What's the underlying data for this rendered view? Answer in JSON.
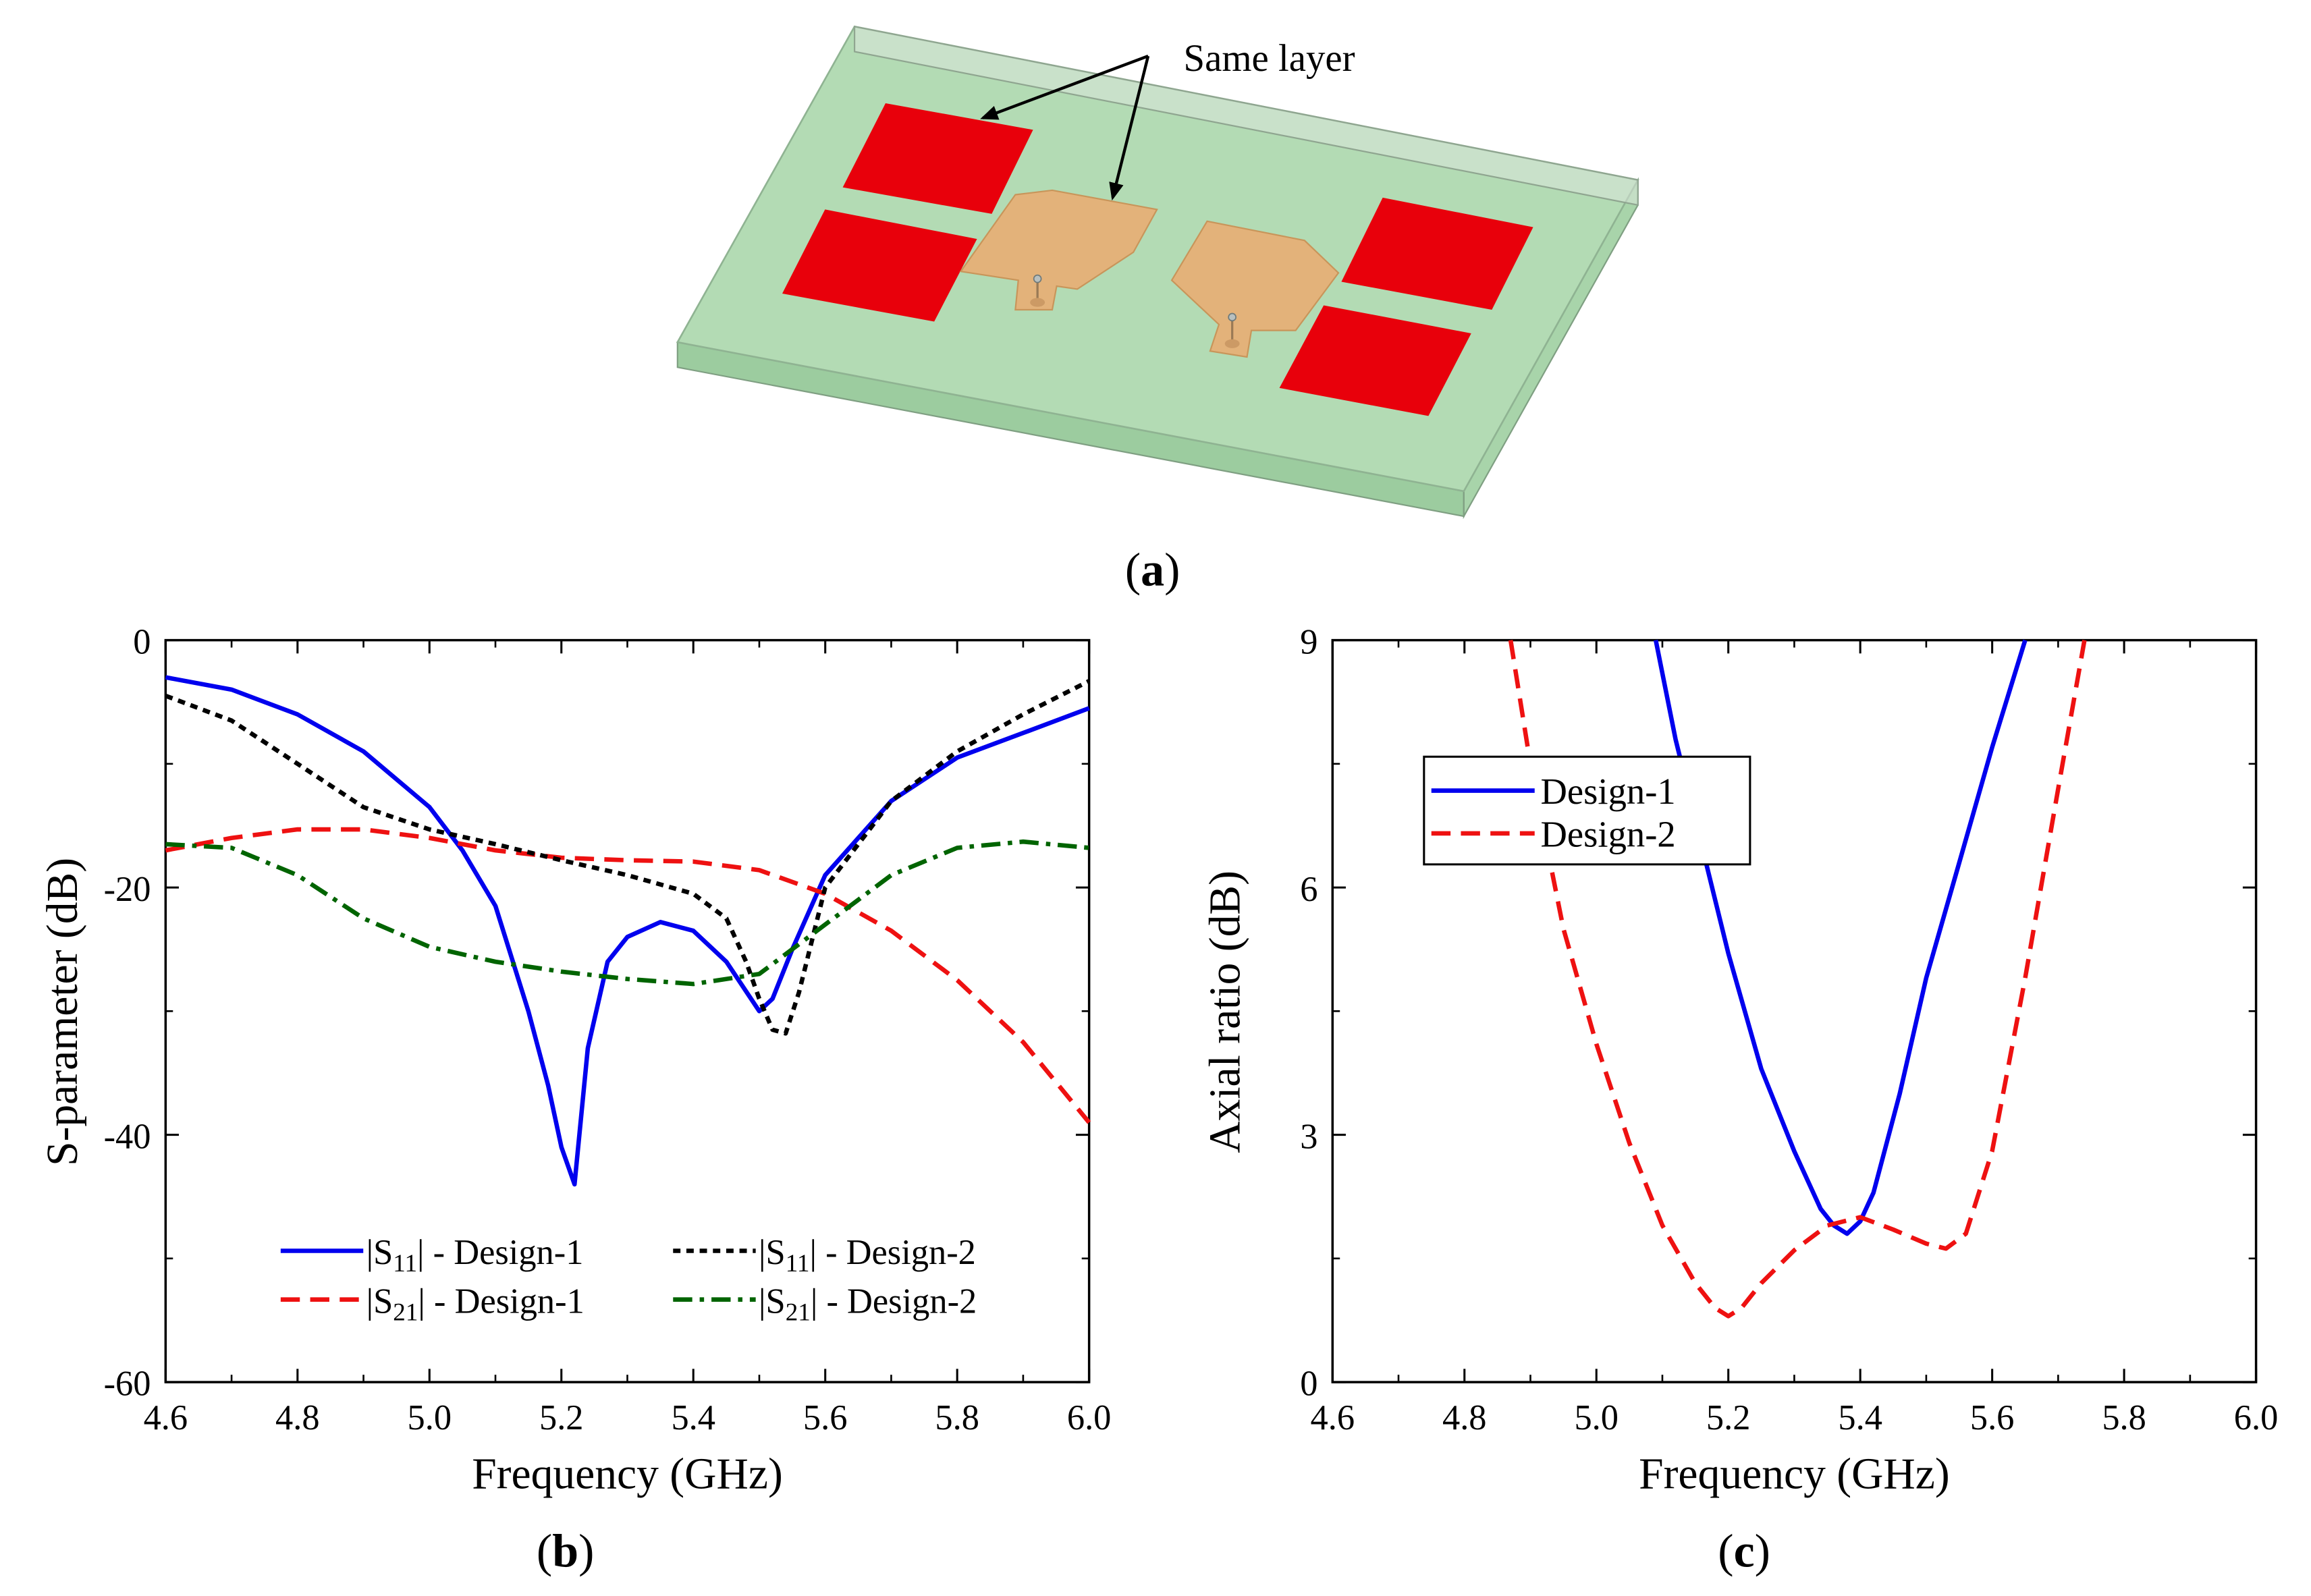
{
  "figure": {
    "panel_a": {
      "label_open": "(",
      "label_letter": "a",
      "label_close": ")",
      "annotation": "Same layer",
      "colors": {
        "substrate": "#b3dbb4",
        "parasitic": "#e8000b",
        "patch": "#e3b27a"
      }
    },
    "panel_b": {
      "label_open": "(",
      "label_letter": "b",
      "label_close": ")"
    },
    "panel_c": {
      "label_open": "(",
      "label_letter": "c",
      "label_close": ")"
    }
  },
  "chart_data": [
    {
      "id": "b",
      "type": "line",
      "title": "",
      "xlabel": "Frequency (GHz)",
      "ylabel": "S-parameter (dB)",
      "xlim": [
        4.6,
        6.0
      ],
      "ylim": [
        -60,
        0
      ],
      "xticks": [
        "4.6",
        "4.8",
        "5.0",
        "5.2",
        "5.4",
        "5.6",
        "5.8",
        "6.0"
      ],
      "yticks": [
        "0",
        "-20",
        "-40",
        "-60"
      ],
      "legend": "bottom",
      "series": [
        {
          "name": "|S11| - Design-1",
          "legend_prefix": "|S",
          "legend_sub": "11",
          "legend_suffix": "| - Design-1",
          "color": "#0000ee",
          "dash": "solid",
          "x": [
            4.6,
            4.7,
            4.8,
            4.9,
            5.0,
            5.05,
            5.1,
            5.15,
            5.18,
            5.2,
            5.22,
            5.24,
            5.27,
            5.3,
            5.35,
            5.4,
            5.45,
            5.5,
            5.52,
            5.55,
            5.6,
            5.7,
            5.8,
            5.9,
            6.0
          ],
          "y": [
            -3,
            -4,
            -6,
            -9,
            -13.5,
            -17,
            -21.5,
            -30,
            -36,
            -41,
            -44,
            -33,
            -26,
            -24,
            -22.8,
            -23.5,
            -26,
            -30,
            -29,
            -25,
            -19,
            -13,
            -9.5,
            -7.5,
            -5.5
          ]
        },
        {
          "name": "|S21| - Design-1",
          "legend_prefix": "|S",
          "legend_sub": "21",
          "legend_suffix": "| - Design-1",
          "color": "#ee1111",
          "dash": "long",
          "x": [
            4.6,
            4.7,
            4.8,
            4.9,
            5.0,
            5.1,
            5.2,
            5.3,
            5.4,
            5.5,
            5.6,
            5.7,
            5.8,
            5.9,
            6.0
          ],
          "y": [
            -17,
            -16,
            -15.3,
            -15.3,
            -16,
            -17,
            -17.6,
            -17.8,
            -17.9,
            -18.6,
            -20.5,
            -23.5,
            -27.5,
            -32.5,
            -39
          ]
        },
        {
          "name": "|S11| - Design-2",
          "legend_prefix": "|S",
          "legend_sub": "11",
          "legend_suffix": "| - Design-2",
          "color": "#000000",
          "dash": "short",
          "x": [
            4.6,
            4.7,
            4.8,
            4.9,
            5.0,
            5.1,
            5.2,
            5.3,
            5.4,
            5.45,
            5.48,
            5.5,
            5.52,
            5.54,
            5.56,
            5.6,
            5.7,
            5.8,
            5.9,
            6.0
          ],
          "y": [
            -4.5,
            -6.5,
            -10,
            -13.5,
            -15.3,
            -16.5,
            -17.8,
            -19,
            -20.5,
            -22.5,
            -26,
            -29,
            -31.5,
            -31.8,
            -28.5,
            -20,
            -13,
            -9,
            -6,
            -3.3
          ]
        },
        {
          "name": "|S21| - Design-2",
          "legend_prefix": "|S",
          "legend_sub": "21",
          "legend_suffix": "| - Design-2",
          "color": "#006400",
          "dash": "dashdot",
          "x": [
            4.6,
            4.7,
            4.8,
            4.9,
            5.0,
            5.1,
            5.2,
            5.3,
            5.4,
            5.5,
            5.6,
            5.7,
            5.8,
            5.9,
            6.0
          ],
          "y": [
            -16.5,
            -16.8,
            -19,
            -22.5,
            -24.8,
            -26,
            -26.8,
            -27.4,
            -27.8,
            -27,
            -23,
            -19,
            -16.8,
            -16.3,
            -16.8
          ]
        }
      ]
    },
    {
      "id": "c",
      "type": "line",
      "title": "",
      "xlabel": "Frequency (GHz)",
      "ylabel": "Axial ratio (dB)",
      "xlim": [
        4.6,
        6.0
      ],
      "ylim": [
        0,
        9
      ],
      "xticks": [
        "4.6",
        "4.8",
        "5.0",
        "5.2",
        "5.4",
        "5.6",
        "5.8",
        "6.0"
      ],
      "yticks": [
        "0",
        "3",
        "6",
        "9"
      ],
      "legend": "top-left",
      "series": [
        {
          "name": "Design-1",
          "color": "#0000ee",
          "dash": "solid",
          "x": [
            5.09,
            5.12,
            5.16,
            5.2,
            5.25,
            5.3,
            5.34,
            5.36,
            5.38,
            5.4,
            5.42,
            5.46,
            5.5,
            5.55,
            5.6,
            5.65
          ],
          "y": [
            9,
            7.8,
            6.5,
            5.2,
            3.8,
            2.8,
            2.1,
            1.9,
            1.8,
            1.95,
            2.3,
            3.5,
            4.9,
            6.3,
            7.7,
            9
          ]
        },
        {
          "name": "Design-2",
          "color": "#ee1111",
          "dash": "long",
          "x": [
            4.87,
            4.9,
            4.95,
            5.0,
            5.05,
            5.1,
            5.15,
            5.18,
            5.2,
            5.22,
            5.25,
            5.3,
            5.35,
            5.4,
            5.45,
            5.5,
            5.53,
            5.56,
            5.6,
            5.65,
            5.7,
            5.74
          ],
          "y": [
            9,
            7.5,
            5.5,
            4.1,
            2.9,
            1.9,
            1.2,
            0.9,
            0.8,
            0.9,
            1.2,
            1.6,
            1.9,
            2.0,
            1.85,
            1.68,
            1.62,
            1.8,
            2.8,
            4.9,
            7.2,
            9
          ]
        }
      ]
    }
  ]
}
